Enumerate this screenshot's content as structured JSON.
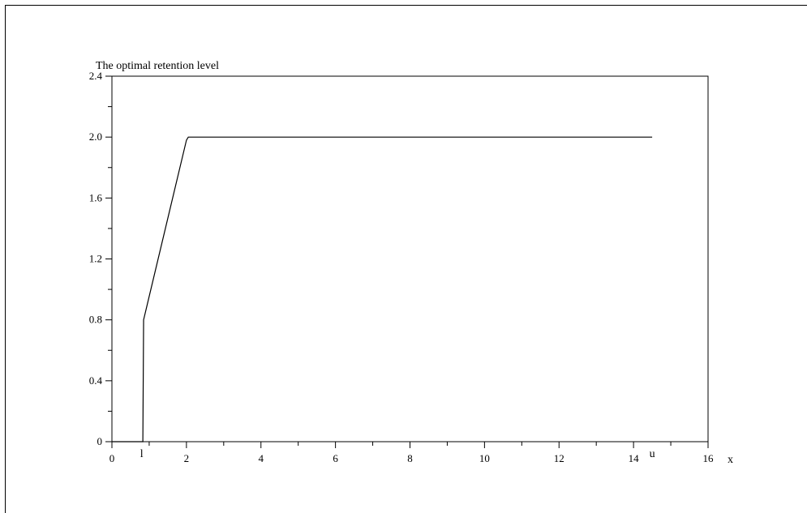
{
  "chart_data": {
    "type": "line",
    "title": "The optimal retention level",
    "xlabel": "x",
    "ylabel": "",
    "xlim": [
      0,
      16
    ],
    "ylim": [
      0,
      2.4
    ],
    "x_ticks": [
      0,
      2,
      4,
      6,
      8,
      10,
      12,
      14,
      16
    ],
    "x_tick_labels": [
      "0",
      "2",
      "4",
      "6",
      "8",
      "10",
      "12",
      "14",
      "16"
    ],
    "y_ticks": [
      0,
      0.4,
      0.8,
      1.2,
      1.6,
      2.0,
      2.4
    ],
    "y_tick_labels": [
      "0",
      "0.4",
      "0.8",
      "1.2",
      "1.6",
      "2.0",
      "2.4"
    ],
    "annotations": [
      {
        "text": "l",
        "x": 0.8
      },
      {
        "text": "u",
        "x": 14.5
      }
    ],
    "grid": false,
    "series": [
      {
        "x": [
          0.0,
          0.83,
          0.85,
          2.0,
          2.05,
          14.5
        ],
        "y": [
          0.0,
          0.0,
          0.8,
          1.98,
          2.0,
          2.0
        ]
      }
    ],
    "colors": {
      "line": "#000000",
      "axes": "#000000"
    }
  }
}
